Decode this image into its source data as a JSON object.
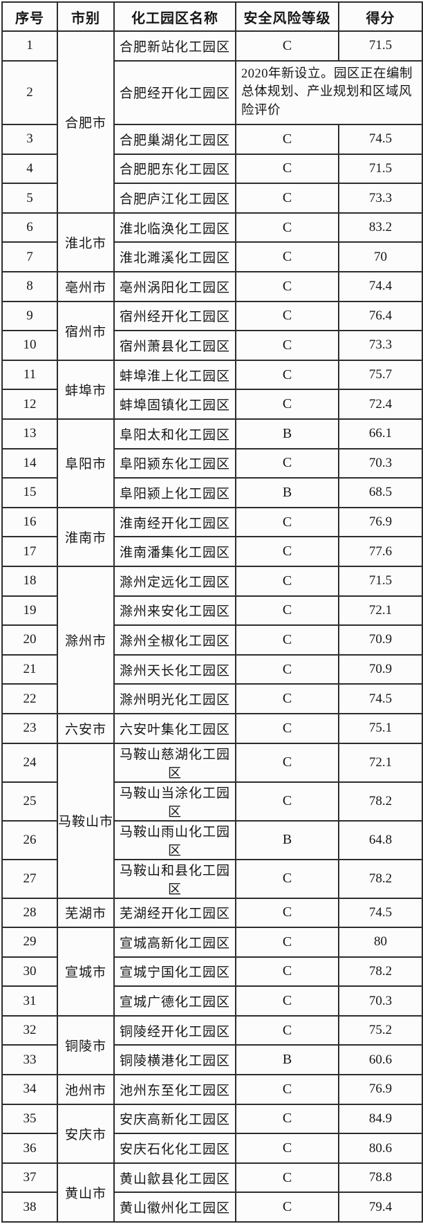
{
  "colors": {
    "border": "#2d2d2d",
    "text": "#161616",
    "background": "#fcfcfc"
  },
  "table": {
    "headers": [
      "序号",
      "市别",
      "化工园区名称",
      "安全风险等级",
      "得分"
    ],
    "city_groups": [
      {
        "name": "合肥市",
        "start": 1,
        "span": 5
      },
      {
        "name": "淮北市",
        "start": 6,
        "span": 2
      },
      {
        "name": "亳州市",
        "start": 8,
        "span": 1
      },
      {
        "name": "宿州市",
        "start": 9,
        "span": 2
      },
      {
        "name": "蚌埠市",
        "start": 11,
        "span": 2
      },
      {
        "name": "阜阳市",
        "start": 13,
        "span": 3
      },
      {
        "name": "淮南市",
        "start": 16,
        "span": 2
      },
      {
        "name": "滁州市",
        "start": 18,
        "span": 5
      },
      {
        "name": "六安市",
        "start": 23,
        "span": 1
      },
      {
        "name": "马鞍山市",
        "start": 24,
        "span": 4
      },
      {
        "name": "芜湖市",
        "start": 28,
        "span": 1
      },
      {
        "name": "宣城市",
        "start": 29,
        "span": 3
      },
      {
        "name": "铜陵市",
        "start": 32,
        "span": 2
      },
      {
        "name": "池州市",
        "start": 34,
        "span": 1
      },
      {
        "name": "安庆市",
        "start": 35,
        "span": 2
      },
      {
        "name": "黄山市",
        "start": 37,
        "span": 2
      }
    ],
    "rows": [
      {
        "no": "1",
        "name": "合肥新站化工园区",
        "level": "C",
        "score": "71.5"
      },
      {
        "no": "2",
        "name": "合肥经开化工园区",
        "note": "2020年新设立。园区正在编制总体规划、产业规划和区域风险评价"
      },
      {
        "no": "3",
        "name": "合肥巢湖化工园区",
        "level": "C",
        "score": "74.5"
      },
      {
        "no": "4",
        "name": "合肥肥东化工园区",
        "level": "C",
        "score": "71.5"
      },
      {
        "no": "5",
        "name": "合肥庐江化工园区",
        "level": "C",
        "score": "73.3"
      },
      {
        "no": "6",
        "name": "淮北临涣化工园区",
        "level": "C",
        "score": "83.2"
      },
      {
        "no": "7",
        "name": "淮北濉溪化工园区",
        "level": "C",
        "score": "70"
      },
      {
        "no": "8",
        "name": "亳州涡阳化工园区",
        "level": "C",
        "score": "74.4"
      },
      {
        "no": "9",
        "name": "宿州经开化工园区",
        "level": "C",
        "score": "76.4"
      },
      {
        "no": "10",
        "name": "宿州萧县化工园区",
        "level": "C",
        "score": "73.3"
      },
      {
        "no": "11",
        "name": "蚌埠淮上化工园区",
        "level": "C",
        "score": "75.7"
      },
      {
        "no": "12",
        "name": "蚌埠固镇化工园区",
        "level": "C",
        "score": "72.4"
      },
      {
        "no": "13",
        "name": "阜阳太和化工园区",
        "level": "B",
        "score": "66.1"
      },
      {
        "no": "14",
        "name": "阜阳颍东化工园区",
        "level": "C",
        "score": "70.3"
      },
      {
        "no": "15",
        "name": "阜阳颍上化工园区",
        "level": "B",
        "score": "68.5"
      },
      {
        "no": "16",
        "name": "淮南经开化工园区",
        "level": "C",
        "score": "76.9"
      },
      {
        "no": "17",
        "name": "淮南潘集化工园区",
        "level": "C",
        "score": "77.6"
      },
      {
        "no": "18",
        "name": "滁州定远化工园区",
        "level": "C",
        "score": "71.5"
      },
      {
        "no": "19",
        "name": "滁州来安化工园区",
        "level": "C",
        "score": "72.1"
      },
      {
        "no": "20",
        "name": "滁州全椒化工园区",
        "level": "C",
        "score": "70.9"
      },
      {
        "no": "21",
        "name": "滁州天长化工园区",
        "level": "C",
        "score": "70.9"
      },
      {
        "no": "22",
        "name": "滁州明光化工园区",
        "level": "C",
        "score": "74.5"
      },
      {
        "no": "23",
        "name": "六安叶集化工园区",
        "level": "C",
        "score": "75.1"
      },
      {
        "no": "24",
        "name": "马鞍山慈湖化工园区",
        "level": "C",
        "score": "72.1"
      },
      {
        "no": "25",
        "name": "马鞍山当涂化工园区",
        "level": "C",
        "score": "78.2"
      },
      {
        "no": "26",
        "name": "马鞍山雨山化工园区",
        "level": "B",
        "score": "64.8"
      },
      {
        "no": "27",
        "name": "马鞍山和县化工园区",
        "level": "C",
        "score": "78.2"
      },
      {
        "no": "28",
        "name": "芜湖经开化工园区",
        "level": "C",
        "score": "74.5"
      },
      {
        "no": "29",
        "name": "宣城高新化工园区",
        "level": "C",
        "score": "80"
      },
      {
        "no": "30",
        "name": "宣城宁国化工园区",
        "level": "C",
        "score": "78.2"
      },
      {
        "no": "31",
        "name": "宣城广德化工园区",
        "level": "C",
        "score": "70.3"
      },
      {
        "no": "32",
        "name": "铜陵经开化工园区",
        "level": "C",
        "score": "75.2"
      },
      {
        "no": "33",
        "name": "铜陵横港化工园区",
        "level": "B",
        "score": "60.6"
      },
      {
        "no": "34",
        "name": "池州东至化工园区",
        "level": "C",
        "score": "76.9"
      },
      {
        "no": "35",
        "name": "安庆高新化工园区",
        "level": "C",
        "score": "84.9"
      },
      {
        "no": "36",
        "name": "安庆石化化工园区",
        "level": "C",
        "score": "80.6"
      },
      {
        "no": "37",
        "name": "黄山歙县化工园区",
        "level": "C",
        "score": "78.8"
      },
      {
        "no": "38",
        "name": "黄山徽州化工园区",
        "level": "C",
        "score": "79.4"
      }
    ]
  }
}
